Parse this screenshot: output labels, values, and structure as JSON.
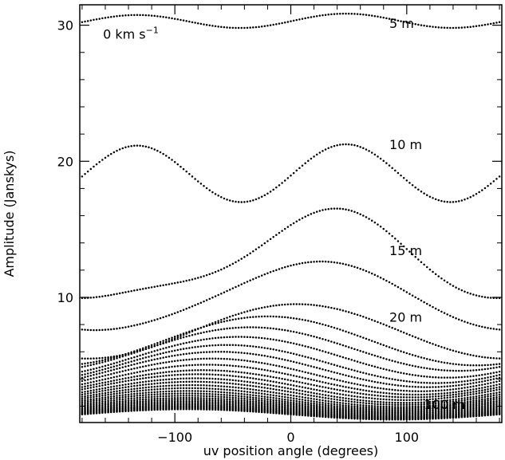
{
  "chart_data": {
    "type": "scatter",
    "title": "",
    "xlabel": "uv position angle (degrees)",
    "ylabel": "Amplitude (Janskys)",
    "xlim": [
      -182,
      182
    ],
    "ylim": [
      0.8,
      31.5
    ],
    "xticks": [
      -100,
      0,
      100
    ],
    "xtick_labels": [
      "−100",
      "0",
      "100"
    ],
    "yticks": [
      10,
      20,
      30
    ],
    "ytick_labels": [
      "10",
      "20",
      "30"
    ],
    "annotations": [
      {
        "text": "0 km s",
        "sup": "−1",
        "x": -162,
        "y": 29.0
      },
      {
        "text": "5 m",
        "x": 85,
        "y": 29.8
      },
      {
        "text": "10 m",
        "x": 85,
        "y": 20.9
      },
      {
        "text": "15 m",
        "x": 85,
        "y": 13.1
      },
      {
        "text": "20 m",
        "x": 85,
        "y": 8.2
      },
      {
        "text": "100 m",
        "x": 115,
        "y": 1.8
      }
    ],
    "series_model": "amplitude = mean + amp * cos(angle - phase) + amp2 * cos(2*angle - phase2), sampled every 2.5 degrees",
    "series": [
      {
        "name": "5 m",
        "mean": 30.3,
        "amp": 0.05,
        "phase": 50,
        "amp2": 0.5,
        "phase2": 95
      },
      {
        "name": "10 m",
        "mean": 19.1,
        "amp": 0.05,
        "phase": 50,
        "amp2": 2.1,
        "phase2": 95
      },
      {
        "name": "15 m",
        "mean": 12.7,
        "amp": 3.1,
        "phase": 30,
        "amp2": 0.8,
        "phase2": 95
      },
      {
        "mean": 10.0,
        "amp": 2.5,
        "phase": 20,
        "amp2": 0.2,
        "phase2": 95
      },
      {
        "name": "20 m",
        "mean": 7.5,
        "amp": 2.0,
        "phase": 5,
        "amp2": 0,
        "phase2": 0
      },
      {
        "mean": 6.8,
        "amp": 1.8,
        "phase": -20,
        "amp2": 0,
        "phase2": 0
      },
      {
        "mean": 6.2,
        "amp": 1.6,
        "phase": -35,
        "amp2": 0,
        "phase2": 0
      },
      {
        "mean": 5.6,
        "amp": 1.5,
        "phase": -45,
        "amp2": 0,
        "phase2": 0
      },
      {
        "mean": 5.1,
        "amp": 1.4,
        "phase": -55,
        "amp2": 0,
        "phase2": 0
      },
      {
        "mean": 4.7,
        "amp": 1.3,
        "phase": -62,
        "amp2": 0,
        "phase2": 0
      },
      {
        "mean": 4.3,
        "amp": 1.2,
        "phase": -68,
        "amp2": 0,
        "phase2": 0
      },
      {
        "mean": 3.95,
        "amp": 1.1,
        "phase": -72,
        "amp2": 0,
        "phase2": 0
      },
      {
        "mean": 3.65,
        "amp": 1.0,
        "phase": -76,
        "amp2": 0,
        "phase2": 0
      },
      {
        "mean": 3.4,
        "amp": 0.95,
        "phase": -80,
        "amp2": 0,
        "phase2": 0
      },
      {
        "mean": 3.15,
        "amp": 0.9,
        "phase": -82,
        "amp2": 0,
        "phase2": 0
      },
      {
        "mean": 2.95,
        "amp": 0.85,
        "phase": -84,
        "amp2": 0,
        "phase2": 0
      },
      {
        "mean": 2.75,
        "amp": 0.8,
        "phase": -86,
        "amp2": 0,
        "phase2": 0
      },
      {
        "mean": 2.58,
        "amp": 0.75,
        "phase": -88,
        "amp2": 0,
        "phase2": 0
      },
      {
        "mean": 2.42,
        "amp": 0.7,
        "phase": -89,
        "amp2": 0,
        "phase2": 0
      },
      {
        "mean": 2.28,
        "amp": 0.66,
        "phase": -90,
        "amp2": 0,
        "phase2": 0
      },
      {
        "mean": 2.15,
        "amp": 0.62,
        "phase": -90,
        "amp2": 0,
        "phase2": 0
      },
      {
        "mean": 2.03,
        "amp": 0.58,
        "phase": -90,
        "amp2": 0,
        "phase2": 0
      },
      {
        "mean": 1.92,
        "amp": 0.55,
        "phase": -90,
        "amp2": 0,
        "phase2": 0
      },
      {
        "mean": 1.82,
        "amp": 0.52,
        "phase": -90,
        "amp2": 0,
        "phase2": 0
      },
      {
        "mean": 1.73,
        "amp": 0.49,
        "phase": -90,
        "amp2": 0,
        "phase2": 0
      },
      {
        "mean": 1.65,
        "amp": 0.46,
        "phase": -90,
        "amp2": 0,
        "phase2": 0
      },
      {
        "mean": 1.58,
        "amp": 0.44,
        "phase": -90,
        "amp2": 0,
        "phase2": 0
      },
      {
        "mean": 1.52,
        "amp": 0.42,
        "phase": -90,
        "amp2": 0,
        "phase2": 0
      },
      {
        "mean": 1.46,
        "amp": 0.4,
        "phase": -90,
        "amp2": 0,
        "phase2": 0
      },
      {
        "name": "100 m",
        "mean": 1.4,
        "amp": 0.38,
        "phase": -90,
        "amp2": 0,
        "phase2": 0
      }
    ]
  }
}
